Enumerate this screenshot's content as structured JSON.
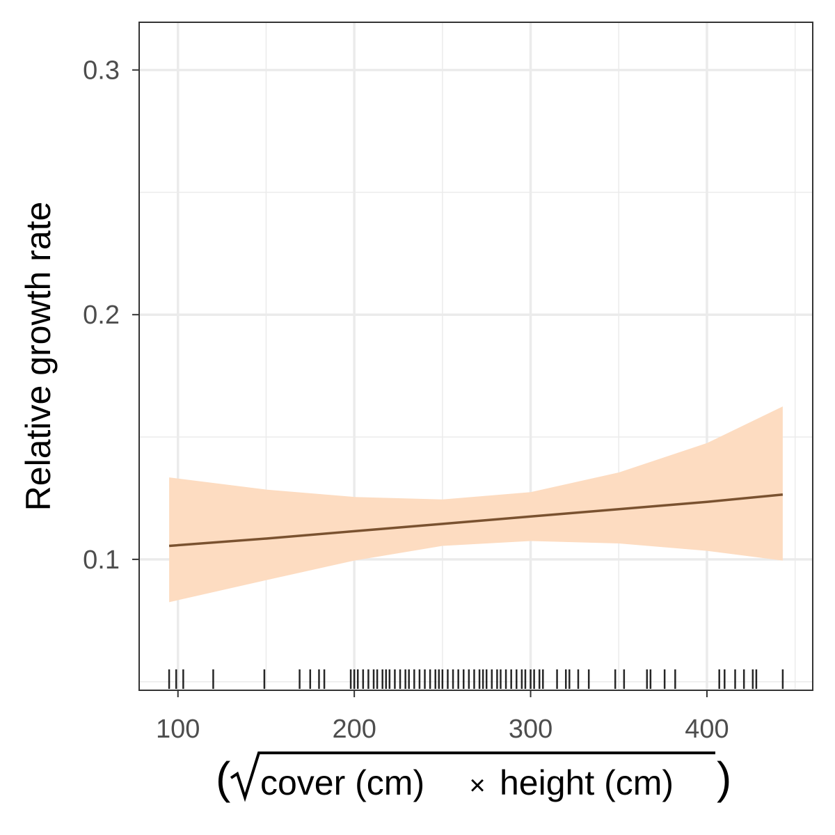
{
  "chart_data": {
    "type": "line",
    "title": "",
    "ylabel": "Relative growth rate",
    "xlabel": {
      "prefix": "(",
      "radicand_part1": "cover (cm)",
      "times": "×",
      "radicand_part2": "height (cm)",
      "suffix": ")"
    },
    "xlim": [
      78,
      460
    ],
    "ylim": [
      0.0465,
      0.3195
    ],
    "x_ticks": [
      100,
      200,
      300,
      400
    ],
    "x_tick_labels": [
      "100",
      "200",
      "300",
      "400"
    ],
    "y_ticks": [
      0.1,
      0.2,
      0.3
    ],
    "y_tick_labels": [
      "0.1",
      "0.2",
      "0.3"
    ],
    "grid": true,
    "series": [
      {
        "x": [
          95,
          150,
          200,
          250,
          300,
          350,
          400,
          443
        ],
        "y": [
          0.1055,
          0.1085,
          0.1115,
          0.1145,
          0.1175,
          0.1205,
          0.1235,
          0.1265
        ],
        "ci_lower": [
          0.0825,
          0.0915,
          0.0995,
          0.1055,
          0.1075,
          0.1065,
          0.1035,
          0.0995
        ],
        "ci_upper": [
          0.1335,
          0.1285,
          0.1255,
          0.1245,
          0.1275,
          0.1355,
          0.1475,
          0.1625
        ],
        "line_color": "#7a5230",
        "band_color": "#fddcc1"
      }
    ],
    "rug_x": [
      95,
      99,
      103,
      120,
      149,
      169,
      175,
      180,
      183,
      198,
      200,
      202,
      205,
      208,
      211,
      213,
      216,
      218,
      220,
      223,
      226,
      229,
      231,
      234,
      237,
      240,
      243,
      246,
      248,
      250,
      253,
      256,
      259,
      262,
      265,
      268,
      271,
      273,
      275,
      278,
      281,
      283,
      286,
      289,
      292,
      295,
      297,
      300,
      302,
      305,
      307,
      315,
      320,
      322,
      327,
      333,
      348,
      353,
      366,
      368,
      376,
      382,
      407,
      410,
      416,
      421,
      426,
      428,
      443
    ],
    "rug_color": "#000000",
    "panel_border_color": "#333333",
    "grid_color": "#ebebeb"
  }
}
